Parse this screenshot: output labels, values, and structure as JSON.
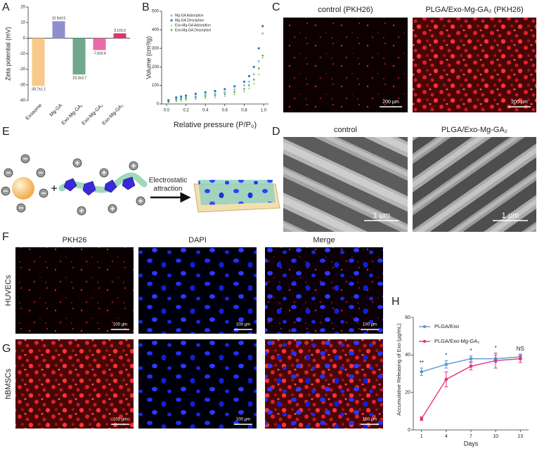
{
  "panel_labels": [
    "A",
    "B",
    "C",
    "D",
    "E",
    "F",
    "G",
    "H"
  ],
  "chart_data": [
    {
      "type": "bar",
      "y_label": "Zeta potential (mV)",
      "categories": [
        "Exosome",
        "Mg-GA",
        "Exo-Mg-GA₁",
        "Exo-Mg-GA₂",
        "Exo-Mg-GA₃"
      ],
      "values": [
        -30.7,
        10.9,
        -23.3,
        -7.6,
        3.1
      ],
      "value_labels": [
        "-30.7±1.1",
        "10.9±0.5",
        "-23.3±3.7",
        "-7.6±0.4",
        "3.1±0.3"
      ],
      "colors": [
        "#f8c98a",
        "#8f8fcf",
        "#6fa88a",
        "#e86aa8",
        "#d9376b"
      ],
      "ylim": [
        -40,
        20
      ],
      "yticks": [
        -40,
        -30,
        -20,
        -10,
        0,
        10,
        20
      ]
    },
    {
      "type": "scatter",
      "x_label": "Relative pressure (P/P₀)",
      "y_label": "Volume (cm³/g)",
      "x": [
        0.02,
        0.1,
        0.15,
        0.2,
        0.3,
        0.4,
        0.5,
        0.6,
        0.7,
        0.8,
        0.85,
        0.9,
        0.95,
        0.99
      ],
      "series": [
        {
          "name": "Mg-GA Adsorption",
          "color": "#8ec9e8",
          "marker": "circle",
          "values": [
            15,
            25,
            30,
            35,
            42,
            50,
            57,
            65,
            78,
            100,
            120,
            160,
            230,
            380
          ]
        },
        {
          "name": "Mg-GA Desorption",
          "color": "#2a7ab8",
          "marker": "circle",
          "values": [
            20,
            35,
            40,
            45,
            55,
            63,
            70,
            80,
            95,
            120,
            150,
            200,
            300,
            420
          ]
        },
        {
          "name": "Exo-Mg-GA Adsorption",
          "color": "#a8d878",
          "marker": "triangle",
          "values": [
            10,
            15,
            18,
            22,
            27,
            32,
            37,
            43,
            52,
            68,
            85,
            110,
            160,
            250
          ]
        },
        {
          "name": "Exo-Mg-GA Desorption",
          "color": "#3a9a3a",
          "marker": "triangle-down",
          "values": [
            12,
            20,
            24,
            28,
            34,
            40,
            46,
            53,
            63,
            80,
            100,
            130,
            190,
            260
          ]
        }
      ],
      "xlim": [
        -0.05,
        1.05
      ],
      "xticks": [
        {
          "value": 0,
          "label": "0.0"
        },
        {
          "value": 0.2,
          "label": "0.2"
        },
        {
          "value": 0.4,
          "label": "0.4"
        },
        {
          "value": 0.6,
          "label": "0.6"
        },
        {
          "value": 0.8,
          "label": "0.8"
        },
        {
          "value": 1,
          "label": "1.0"
        }
      ],
      "ylim": [
        0,
        500
      ],
      "yticks": [
        0,
        100,
        200,
        300,
        400,
        500
      ]
    },
    {
      "type": "line",
      "x_label": "Days",
      "y_label": "Accumulative Releasing of Exo (μg/mL)",
      "x": [
        1,
        4,
        7,
        10,
        13
      ],
      "series": [
        {
          "name": "PLGA/Exo",
          "color": "#5b9bd5",
          "values": [
            31,
            35,
            38,
            38,
            39
          ],
          "errors": [
            2,
            2,
            1.5,
            2,
            1.5
          ]
        },
        {
          "name": "PLGA/Exo-Mg-GA₂",
          "color": "#e6337a",
          "values": [
            6,
            27,
            34,
            37,
            38
          ],
          "errors": [
            1,
            4,
            2,
            4,
            2
          ]
        }
      ],
      "annotations": [
        {
          "x": 1,
          "text": "**"
        },
        {
          "x": 4,
          "text": "*"
        },
        {
          "x": 7,
          "text": "*"
        },
        {
          "x": 10,
          "text": "*"
        },
        {
          "x": 13,
          "text": "NS"
        }
      ],
      "xlim": [
        0,
        14
      ],
      "xticks": [
        1,
        4,
        7,
        10,
        13
      ],
      "ylim": [
        0,
        60
      ],
      "yticks": [
        0,
        20,
        40,
        60
      ]
    }
  ],
  "images": {
    "C": {
      "titles": [
        "control (PKH26)",
        "PLGA/Exo-Mg-GA₂ (PKH26)"
      ],
      "scale_bar": "200 μm"
    },
    "D": {
      "titles": [
        "control",
        "PLGA/Exo-Mg-GA₂"
      ],
      "scale_bar": "1 μm"
    },
    "E": {
      "label": [
        "Electrostatic",
        "attraction"
      ]
    },
    "F": {
      "columns": [
        "PKH26",
        "DAPI",
        "Merge"
      ],
      "rows": [
        "HUVECs",
        "hBMSCs"
      ],
      "scale_bar": "100 μm"
    }
  }
}
